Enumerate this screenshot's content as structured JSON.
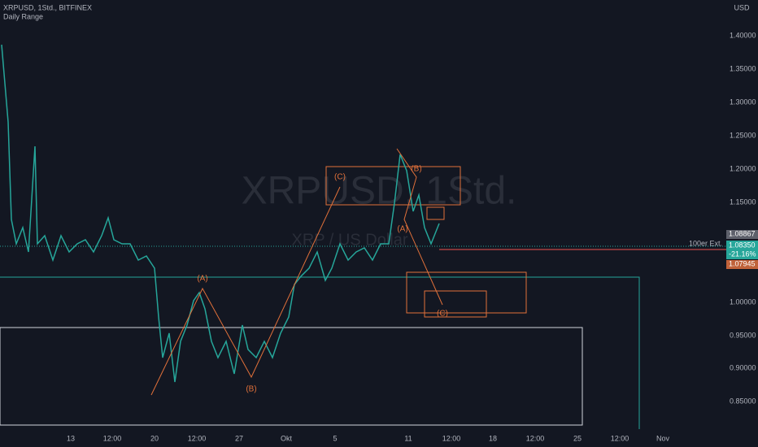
{
  "header": {
    "title": "XRPUSD, 1Std., BITFINEX",
    "indicator": "Daily Range"
  },
  "watermark": {
    "symbol": "XRPUSD, 1Std.",
    "name": "XRP / US Dollar"
  },
  "price_axis": {
    "currency": "USD",
    "labels": [
      "1.40000",
      "1.35000",
      "1.30000",
      "1.25000",
      "1.20000",
      "1.15000",
      "1.00000",
      "0.95000",
      "0.90000",
      "0.85000"
    ]
  },
  "time_axis": {
    "labels": [
      "13",
      "12:00",
      "20",
      "12:00",
      "27",
      "Okt",
      "5",
      "11",
      "12:00",
      "18",
      "12:00",
      "25",
      "12:00",
      "Nov"
    ]
  },
  "price_tags": {
    "high": "1.08867",
    "last": "1.08350",
    "change": "-21.16%",
    "low": "1.07945",
    "level_label": "100er Ext."
  },
  "annotations": [
    "(A)",
    "(B)",
    "(C)",
    "(A)",
    "(B)",
    "(C)"
  ]
}
